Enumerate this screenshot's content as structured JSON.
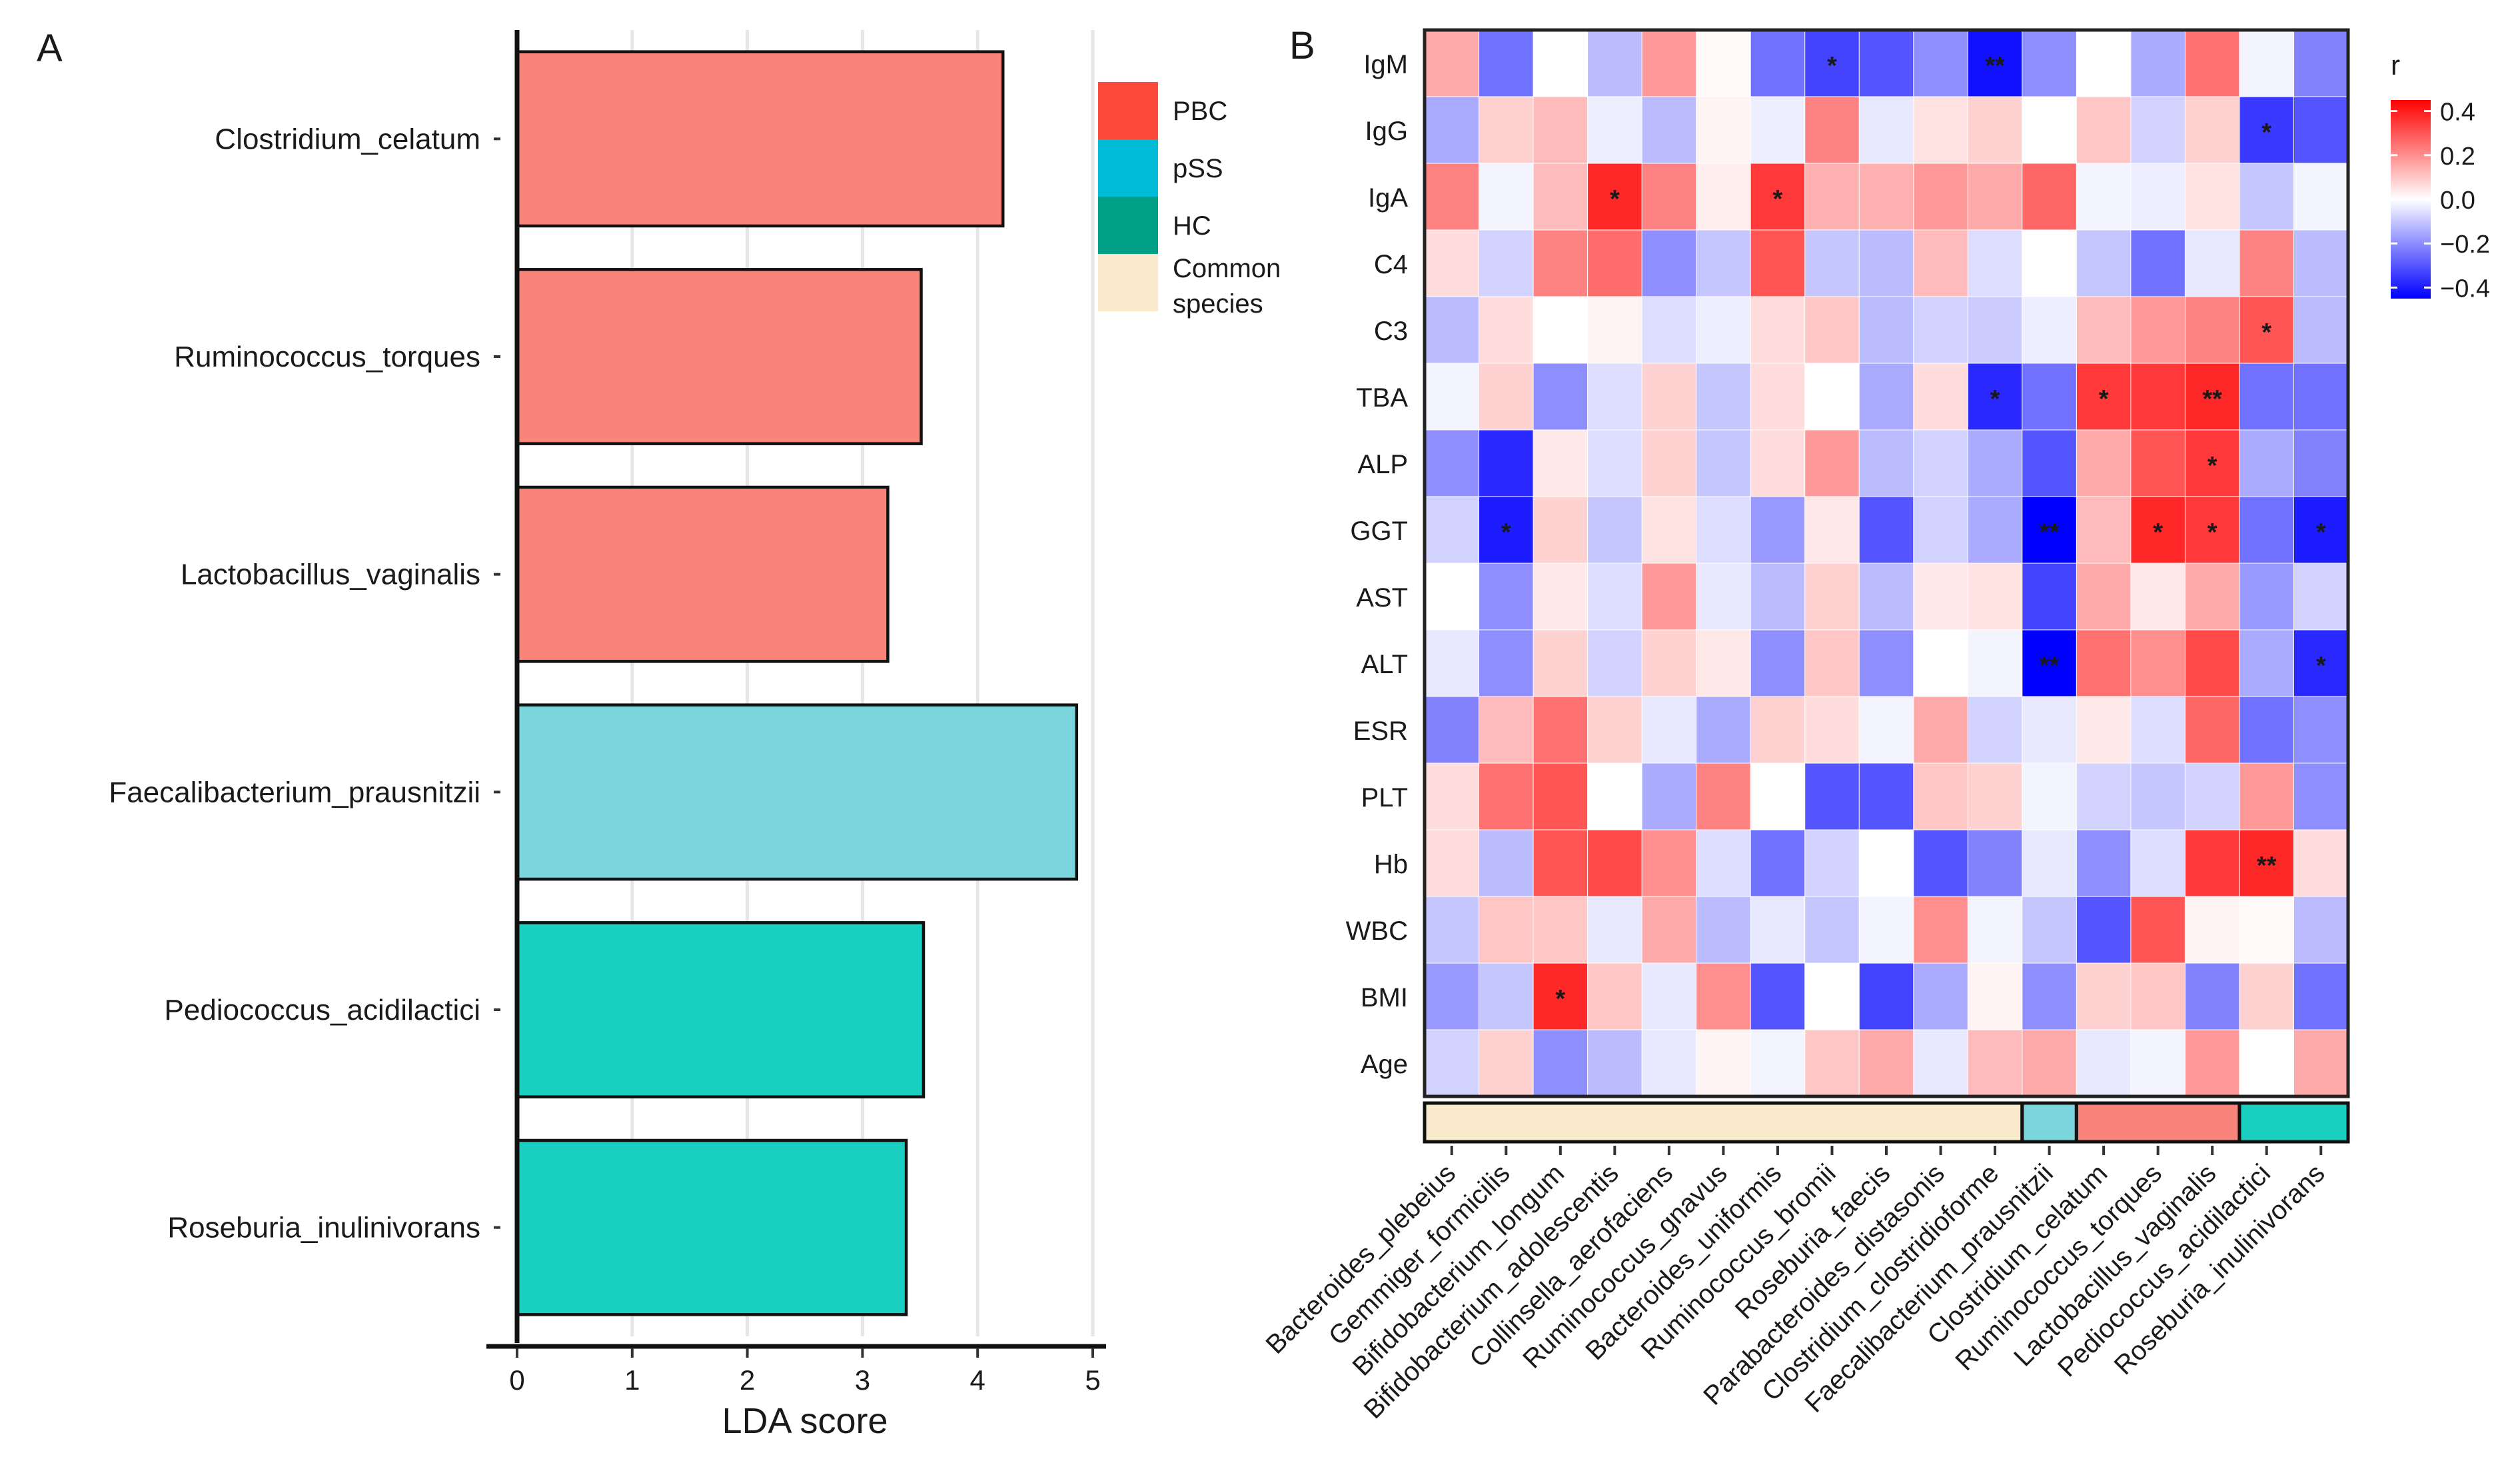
{
  "chart_data": [
    {
      "panel": "A",
      "type": "bar",
      "orientation": "horizontal",
      "categories": [
        "Clostridium_celatum",
        "Ruminococcus_torques",
        "Lactobacillus_vaginalis",
        "Faecalibacterium_prausnitzii",
        "Pediococcus_acidilactici",
        "Roseburia_inulinivorans"
      ],
      "values": [
        4.22,
        3.51,
        3.22,
        4.86,
        3.53,
        3.38
      ],
      "groups": [
        "PBC",
        "PBC",
        "PBC",
        "pSS",
        "HC",
        "HC"
      ],
      "xlabel": "LDA score",
      "xlim": [
        0,
        5
      ],
      "xticks": [
        0,
        1,
        2,
        3,
        4,
        5
      ],
      "legend": [
        {
          "label": "PBC",
          "color": "#fb4a3a"
        },
        {
          "label": "pSS",
          "color": "#00bbd6"
        },
        {
          "label": "HC",
          "color": "#00a087"
        },
        {
          "label": "Common species",
          "color": "#f8eacb"
        }
      ],
      "bar_colors": {
        "PBC": "#f8847a",
        "pSS": "#7bd5dd",
        "HC": "#19d0c0"
      }
    },
    {
      "panel": "B",
      "type": "heatmap",
      "rows": [
        "IgM",
        "IgG",
        "IgA",
        "C4",
        "C3",
        "TBA",
        "ALP",
        "GGT",
        "AST",
        "ALT",
        "ESR",
        "PLT",
        "Hb",
        "WBC",
        "BMI",
        "Age"
      ],
      "columns": [
        "Bacteroides_plebeius",
        "Gemmiger_formicilis",
        "Bifidobacterium_longum",
        "Bifidobacterium_adolescentis",
        "Collinsella_aerofaciens",
        "Ruminococcus_gnavus",
        "Bacteroides_uniformis",
        "Ruminococcus_bromii",
        "Roseburia_faecis",
        "Parabacteroides_distasonis",
        "Clostridium_clostridioforme",
        "Faecalibacterium_prausnitzii",
        "Clostridium_celatum",
        "Ruminococcus_torques",
        "Lactobacillus_vaginalis",
        "Pediococcus_acidilactici",
        "Roseburia_inulinivorans"
      ],
      "values": [
        [
          0.15,
          -0.25,
          0.0,
          -0.12,
          0.18,
          0.01,
          -0.25,
          -0.33,
          -0.3,
          -0.2,
          -0.42,
          -0.2,
          0.0,
          -0.15,
          0.25,
          -0.02,
          -0.22
        ],
        [
          -0.15,
          0.08,
          0.12,
          -0.03,
          -0.12,
          0.02,
          -0.03,
          0.22,
          -0.04,
          0.05,
          0.08,
          0.0,
          0.1,
          -0.08,
          0.08,
          -0.35,
          -0.3
        ],
        [
          0.22,
          -0.02,
          0.12,
          0.38,
          0.22,
          0.03,
          0.35,
          0.14,
          0.14,
          0.18,
          0.15,
          0.27,
          -0.02,
          -0.03,
          0.05,
          -0.1,
          -0.02
        ],
        [
          0.06,
          -0.08,
          0.22,
          0.26,
          -0.2,
          -0.1,
          0.3,
          -0.1,
          -0.12,
          0.12,
          -0.06,
          0.0,
          -0.1,
          -0.25,
          -0.04,
          0.22,
          -0.12
        ],
        [
          -0.12,
          0.06,
          0.0,
          0.02,
          -0.06,
          -0.03,
          0.06,
          0.1,
          -0.12,
          -0.08,
          -0.09,
          -0.03,
          0.12,
          0.18,
          0.22,
          0.3,
          -0.12
        ],
        [
          -0.02,
          0.08,
          -0.2,
          -0.06,
          0.08,
          -0.1,
          0.06,
          0.0,
          -0.15,
          0.06,
          -0.38,
          -0.25,
          0.35,
          0.35,
          0.38,
          -0.25,
          -0.25
        ],
        [
          -0.2,
          -0.38,
          0.04,
          -0.06,
          0.08,
          -0.1,
          0.06,
          0.18,
          -0.12,
          -0.08,
          -0.15,
          -0.3,
          0.15,
          0.3,
          0.35,
          -0.15,
          -0.22
        ],
        [
          -0.08,
          -0.4,
          0.08,
          -0.1,
          0.05,
          -0.06,
          -0.18,
          0.04,
          -0.3,
          -0.08,
          -0.15,
          -0.45,
          0.12,
          0.38,
          0.35,
          -0.25,
          -0.4
        ],
        [
          0.0,
          -0.2,
          0.04,
          -0.06,
          0.18,
          -0.04,
          -0.12,
          0.08,
          -0.12,
          0.04,
          0.05,
          -0.33,
          0.15,
          0.04,
          0.15,
          -0.18,
          -0.08
        ],
        [
          -0.04,
          -0.2,
          0.08,
          -0.08,
          0.08,
          0.04,
          -0.2,
          0.1,
          -0.2,
          0.0,
          -0.02,
          -0.45,
          0.25,
          0.2,
          0.32,
          -0.15,
          -0.38
        ],
        [
          -0.22,
          0.12,
          0.25,
          0.08,
          -0.04,
          -0.15,
          0.08,
          0.06,
          -0.02,
          0.15,
          -0.08,
          -0.04,
          0.04,
          -0.06,
          0.27,
          -0.25,
          -0.2
        ],
        [
          0.06,
          0.25,
          0.3,
          0.0,
          -0.15,
          0.22,
          0.0,
          -0.3,
          -0.3,
          0.1,
          0.08,
          -0.02,
          -0.08,
          -0.1,
          -0.08,
          0.18,
          -0.2
        ],
        [
          0.06,
          -0.12,
          0.3,
          0.32,
          0.2,
          -0.06,
          -0.25,
          -0.08,
          0.0,
          -0.3,
          -0.22,
          -0.04,
          -0.2,
          -0.06,
          0.35,
          0.38,
          0.06
        ],
        [
          -0.1,
          0.1,
          0.1,
          -0.04,
          0.15,
          -0.12,
          -0.04,
          -0.1,
          -0.02,
          0.2,
          -0.02,
          -0.1,
          -0.3,
          0.3,
          0.02,
          0.01,
          -0.12
        ],
        [
          -0.18,
          -0.1,
          0.38,
          0.1,
          -0.04,
          0.2,
          -0.3,
          0.0,
          -0.33,
          -0.15,
          0.02,
          -0.2,
          0.08,
          0.1,
          -0.22,
          0.08,
          -0.25
        ],
        [
          -0.08,
          0.08,
          -0.2,
          -0.12,
          -0.04,
          0.02,
          -0.02,
          0.1,
          0.15,
          -0.04,
          0.12,
          0.15,
          -0.04,
          -0.02,
          0.18,
          0.0,
          0.15
        ]
      ],
      "significance": [
        {
          "row": "IgM",
          "column": "Ruminococcus_bromii",
          "label": "*"
        },
        {
          "row": "IgM",
          "column": "Clostridium_clostridioforme",
          "label": "**"
        },
        {
          "row": "IgG",
          "column": "Pediococcus_acidilactici",
          "label": "*"
        },
        {
          "row": "IgA",
          "column": "Bifidobacterium_adolescentis",
          "label": "*"
        },
        {
          "row": "IgA",
          "column": "Bacteroides_uniformis",
          "label": "*"
        },
        {
          "row": "C3",
          "column": "Pediococcus_acidilactici",
          "label": "*"
        },
        {
          "row": "TBA",
          "column": "Clostridium_clostridioforme",
          "label": "*"
        },
        {
          "row": "TBA",
          "column": "Clostridium_celatum",
          "label": "*"
        },
        {
          "row": "TBA",
          "column": "Lactobacillus_vaginalis",
          "label": "**"
        },
        {
          "row": "ALP",
          "column": "Lactobacillus_vaginalis",
          "label": "*"
        },
        {
          "row": "GGT",
          "column": "Gemmiger_formicilis",
          "label": "*"
        },
        {
          "row": "GGT",
          "column": "Faecalibacterium_prausnitzii",
          "label": "**"
        },
        {
          "row": "GGT",
          "column": "Ruminococcus_torques",
          "label": "*"
        },
        {
          "row": "GGT",
          "column": "Lactobacillus_vaginalis",
          "label": "*"
        },
        {
          "row": "GGT",
          "column": "Roseburia_inulinivorans",
          "label": "*"
        },
        {
          "row": "ALT",
          "column": "Faecalibacterium_prausnitzii",
          "label": "**"
        },
        {
          "row": "ALT",
          "column": "Roseburia_inulinivorans",
          "label": "*"
        },
        {
          "row": "Hb",
          "column": "Pediococcus_acidilactici",
          "label": "**"
        },
        {
          "row": "BMI",
          "column": "Bifidobacterium_longum",
          "label": "*"
        }
      ],
      "column_groups": [
        {
          "group": "Common species",
          "from": 0,
          "to": 10,
          "color": "#f8eacb"
        },
        {
          "group": "pSS",
          "from": 11,
          "to": 11,
          "color": "#7bd5dd"
        },
        {
          "group": "PBC",
          "from": 12,
          "to": 14,
          "color": "#f8847a"
        },
        {
          "group": "HC",
          "from": 15,
          "to": 16,
          "color": "#19d0c0"
        }
      ],
      "colorbar": {
        "title": "r",
        "range": [
          -0.45,
          0.45
        ],
        "ticks": [
          0.4,
          0.2,
          0.0,
          -0.2,
          -0.4
        ],
        "tick_labels": [
          "0.4",
          "0.2",
          "0.0",
          "−0.2",
          "−0.4"
        ],
        "low": "#0000ff",
        "mid": "#ffffff",
        "high": "#ff0000"
      }
    }
  ],
  "panel_labels": {
    "a": "A",
    "b": "B"
  }
}
